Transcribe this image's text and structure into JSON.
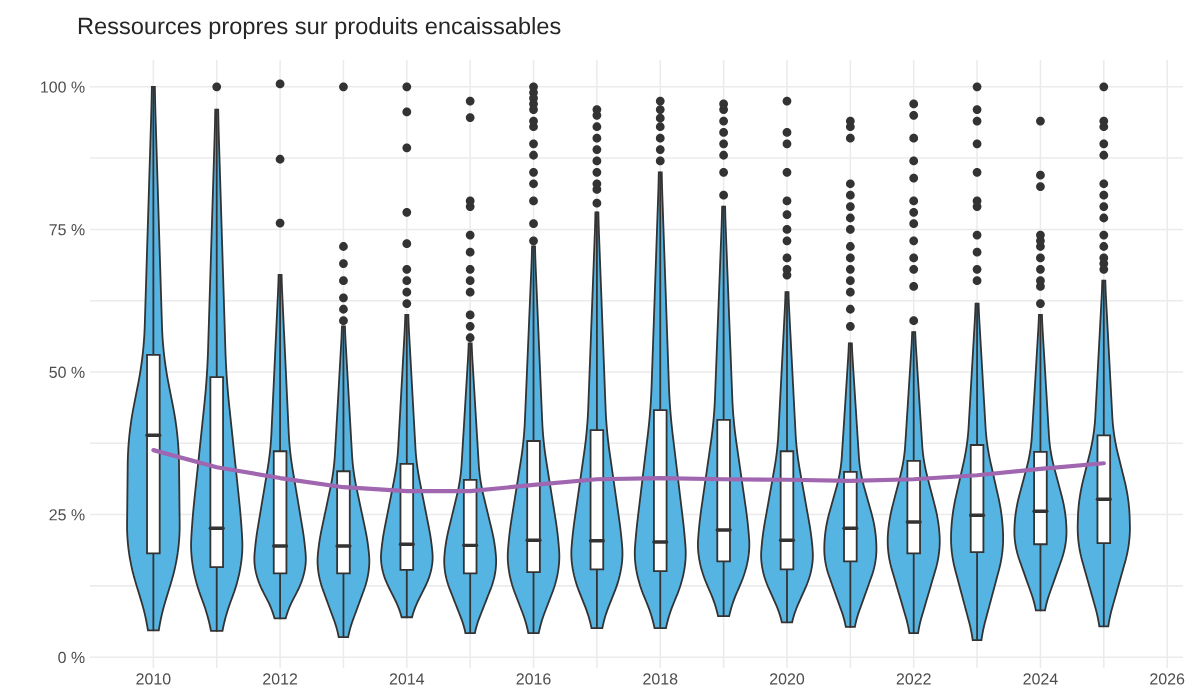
{
  "chart_data": {
    "type": "box",
    "title": "Ressources propres sur produits encaissables",
    "x": [
      2010,
      2011,
      2012,
      2013,
      2014,
      2015,
      2016,
      2017,
      2018,
      2019,
      2020,
      2021,
      2022,
      2023,
      2024,
      2025
    ],
    "series": [
      {
        "color": "#ffffff",
        "boxes": [
          {
            "low": 4.7,
            "q1": 18.2,
            "median": 38.9,
            "q3": 53.0,
            "high": 100
          },
          {
            "low": 4.6,
            "q1": 15.8,
            "median": 22.6,
            "q3": 49.1,
            "high": 96,
            "outliers": [
              100
            ]
          },
          {
            "low": 6.8,
            "q1": 14.7,
            "median": 19.5,
            "q3": 36.1,
            "high": 67,
            "outliers": [
              76.1,
              87.3,
              100.5
            ]
          },
          {
            "low": 3.5,
            "q1": 14.7,
            "median": 19.5,
            "q3": 32.6,
            "high": 58,
            "outliers": [
              59,
              61,
              63,
              66,
              69,
              72,
              100
            ]
          },
          {
            "low": 7.0,
            "q1": 15.3,
            "median": 19.8,
            "q3": 33.9,
            "high": 60,
            "outliers": [
              62,
              64,
              66,
              68,
              72.5,
              78,
              89.3,
              95.6,
              100
            ]
          },
          {
            "low": 4.2,
            "q1": 14.7,
            "median": 19.6,
            "q3": 31.1,
            "high": 55,
            "outliers": [
              56,
              58,
              60,
              64,
              66,
              68,
              71,
              74,
              79,
              80,
              94.6,
              97.5
            ]
          },
          {
            "low": 4.2,
            "q1": 14.9,
            "median": 20.5,
            "q3": 37.9,
            "high": 72,
            "outliers": [
              73,
              76,
              80,
              83,
              85,
              88,
              90,
              93,
              94,
              96,
              97,
              98,
              99,
              100
            ]
          },
          {
            "low": 5.1,
            "q1": 15.4,
            "median": 20.4,
            "q3": 39.8,
            "high": 78,
            "outliers": [
              79.6,
              82,
              83,
              85,
              87,
              89,
              91,
              93,
              95,
              96
            ]
          },
          {
            "low": 5.1,
            "q1": 15.1,
            "median": 20.2,
            "q3": 43.3,
            "high": 85,
            "outliers": [
              87,
              89,
              91,
              93,
              94.5,
              96,
              97.5
            ]
          },
          {
            "low": 7.2,
            "q1": 16.8,
            "median": 22.3,
            "q3": 41.6,
            "high": 79,
            "outliers": [
              81,
              85,
              88,
              90,
              92,
              94,
              96,
              97
            ]
          },
          {
            "low": 6.1,
            "q1": 15.4,
            "median": 20.5,
            "q3": 36.1,
            "high": 64,
            "outliers": [
              67,
              68,
              70,
              73,
              75,
              77.6,
              80,
              85,
              90,
              92,
              97.5
            ]
          },
          {
            "low": 5.3,
            "q1": 16.8,
            "median": 22.6,
            "q3": 32.5,
            "high": 55,
            "outliers": [
              58,
              61,
              64,
              66,
              68,
              70,
              72,
              75,
              77,
              79,
              81,
              83,
              91,
              93,
              94
            ]
          },
          {
            "low": 4.2,
            "q1": 18.2,
            "median": 23.7,
            "q3": 34.4,
            "high": 57,
            "outliers": [
              59,
              65,
              68,
              70,
              73,
              76,
              78,
              80,
              84,
              87,
              91,
              95,
              97
            ]
          },
          {
            "low": 3.0,
            "q1": 18.4,
            "median": 24.9,
            "q3": 37.2,
            "high": 62,
            "outliers": [
              66,
              68,
              71,
              74,
              79,
              80,
              85,
              90,
              94,
              96,
              100
            ]
          },
          {
            "low": 8.2,
            "q1": 19.8,
            "median": 25.6,
            "q3": 36.0,
            "high": 60,
            "outliers": [
              62,
              65,
              66,
              68,
              70,
              72,
              73,
              74,
              82.5,
              84.5,
              94
            ]
          },
          {
            "low": 5.4,
            "q1": 20.0,
            "median": 27.7,
            "q3": 38.9,
            "high": 66,
            "outliers": [
              68,
              69,
              70,
              72,
              74,
              77,
              79,
              81,
              83,
              88,
              90,
              93,
              94,
              100
            ]
          }
        ]
      },
      {
        "type": "line",
        "color": "#a066b0",
        "x": [
          2010,
          2011,
          2012,
          2013,
          2014,
          2015,
          2016,
          2017,
          2018,
          2019,
          2020,
          2021,
          2022,
          2023,
          2024,
          2025
        ],
        "values": [
          36.3,
          33.3,
          31.4,
          29.8,
          29.1,
          29.1,
          30.2,
          31.2,
          31.4,
          31.2,
          31.1,
          30.9,
          31.2,
          31.9,
          33.0,
          34.0
        ]
      }
    ],
    "xlim": [
      2009.0,
      2026.25
    ],
    "ylim": [
      -1.9,
      104.7
    ],
    "xticks": [
      2010,
      {
        "value": 2011,
        "label": null
      },
      2012,
      {
        "value": 2013,
        "label": null
      },
      2014,
      {
        "value": 2015,
        "label": null
      },
      2016,
      {
        "value": 2017,
        "label": null
      },
      2018,
      {
        "value": 2019,
        "label": null
      },
      2020,
      {
        "value": 2021,
        "label": null
      },
      2022,
      {
        "value": 2023,
        "label": null
      },
      2024,
      {
        "value": 2025,
        "label": null
      },
      2026
    ],
    "yticks": [
      {
        "value": 0,
        "label": "0 %"
      },
      {
        "value": 12.5,
        "label": null
      },
      {
        "value": 25,
        "label": "25 %"
      },
      {
        "value": 37.5,
        "label": null
      },
      {
        "value": 50,
        "label": "50 %"
      },
      {
        "value": 62.5,
        "label": null
      },
      {
        "value": 75,
        "label": "75 %"
      },
      {
        "value": 87.5,
        "label": null
      },
      {
        "value": 100,
        "label": "100 %"
      }
    ],
    "grid": true
  }
}
